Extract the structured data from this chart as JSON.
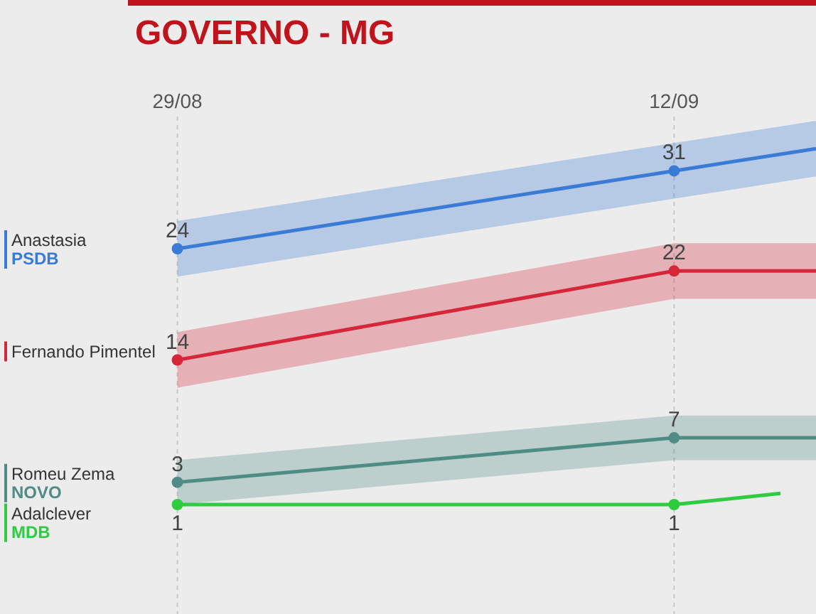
{
  "chart_data": {
    "type": "line",
    "title": "GOVERNO - MG",
    "xlim": [
      "--08-24",
      "--09-16"
    ],
    "legend": "left",
    "xticks": [
      {
        "value": "--08-29",
        "label": "29/08"
      },
      {
        "value": "--09-12",
        "label": "12/09"
      }
    ],
    "grid": "x",
    "marker": "circle",
    "tick_labels": "x",
    "series": [
      {
        "name": "Anastasia\nPSDB",
        "color": "#3a7bd5",
        "x": [
          "--08-29",
          "--09-12",
          "--09-16"
        ],
        "values": [
          24,
          31,
          33
        ],
        "lower": [
          21.5,
          28.5,
          30.5
        ],
        "upper": [
          26.5,
          33.5,
          35.5
        ],
        "value_labels": [
          "24",
          "31",
          null
        ]
      },
      {
        "name": "Fernando Pimentel",
        "color": "#d6263a",
        "x": [
          "--08-29",
          "--09-12",
          "--09-16"
        ],
        "values": [
          14,
          22,
          22
        ],
        "lower": [
          11.5,
          19.5,
          19.5
        ],
        "upper": [
          16.5,
          24.5,
          24.5
        ],
        "value_labels": [
          "14",
          "22",
          null
        ]
      },
      {
        "name": "Romeu Zema\nNOVO",
        "color": "#4f8c85",
        "x": [
          "--08-29",
          "--09-12",
          "--09-16"
        ],
        "values": [
          3,
          7,
          7
        ],
        "lower": [
          1,
          5,
          5
        ],
        "upper": [
          5,
          9,
          9
        ],
        "value_labels": [
          "3",
          "7",
          null
        ]
      },
      {
        "name": "Adalclever\nMDB",
        "color": "#2ecc40",
        "x": [
          "--08-29",
          "--09-12",
          "--09-15"
        ],
        "values": [
          1,
          1,
          2
        ],
        "value_labels": [
          "1",
          "1",
          null
        ]
      }
    ]
  }
}
